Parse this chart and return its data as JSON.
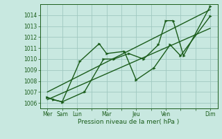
{
  "background_color": "#c8e8e0",
  "grid_color": "#a0c8c0",
  "line_color": "#1a5c1a",
  "xlabel": "Pression niveau de la mer( hPa )",
  "ylim": [
    1005.5,
    1015.0
  ],
  "yticks": [
    1006,
    1007,
    1008,
    1009,
    1010,
    1011,
    1012,
    1013,
    1014
  ],
  "xtick_labels": [
    "Mer",
    "Sam",
    "Lun",
    "",
    "Mar",
    "",
    "Jeu",
    "",
    "Ven",
    "",
    "",
    "Dim"
  ],
  "xtick_positions": [
    0,
    1,
    2,
    3,
    4,
    5,
    6,
    7,
    8,
    9,
    10,
    11
  ],
  "series1_x": [
    0.0,
    0.4,
    1.0,
    2.2,
    3.5,
    4.0,
    5.2,
    6.0,
    7.2,
    8.3,
    9.0,
    11.0
  ],
  "series1_y": [
    1006.5,
    1006.3,
    1006.1,
    1009.8,
    1011.4,
    1010.5,
    1010.7,
    1008.1,
    1009.2,
    1011.3,
    1010.3,
    1013.9
  ],
  "series2_x": [
    0.0,
    0.4,
    1.0,
    2.5,
    3.8,
    4.5,
    5.5,
    6.5,
    7.5,
    8.0,
    8.5,
    9.2,
    11.0
  ],
  "series2_y": [
    1006.5,
    1006.3,
    1006.1,
    1007.0,
    1010.0,
    1010.0,
    1010.5,
    1010.0,
    1011.3,
    1013.5,
    1013.5,
    1010.3,
    1014.8
  ],
  "trend1_x": [
    0.0,
    11.0
  ],
  "trend1_y": [
    1006.3,
    1012.8
  ],
  "trend2_x": [
    0.0,
    11.0
  ],
  "trend2_y": [
    1007.0,
    1014.5
  ],
  "marker_size": 2.5,
  "linewidth": 1.0
}
